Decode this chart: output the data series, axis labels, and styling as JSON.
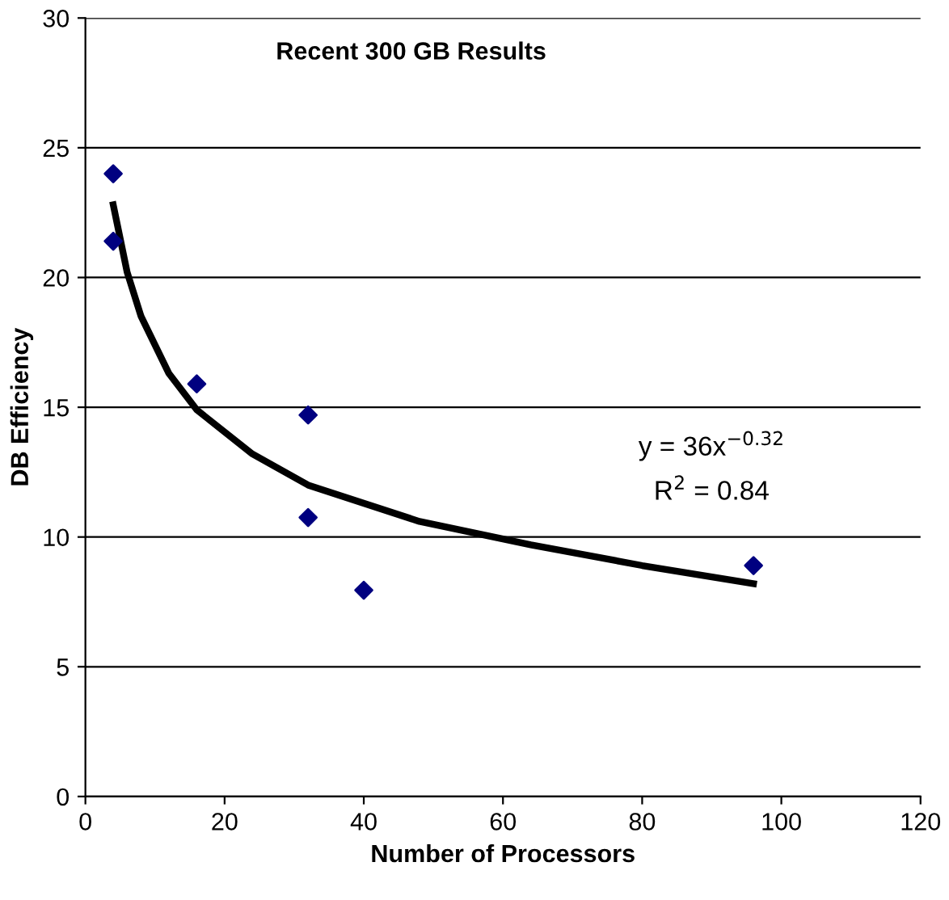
{
  "chart_data": {
    "type": "scatter",
    "title": "Recent 300 GB Results",
    "xlabel": "Number of Processors",
    "ylabel": "DB Efficiency",
    "series": [
      {
        "color": "#000080",
        "marker": "diamond",
        "x": [
          4,
          4,
          16,
          32,
          32,
          40,
          96
        ],
        "values": [
          24.0,
          21.4,
          15.9,
          14.7,
          10.75,
          7.95,
          8.9
        ]
      },
      {
        "type": "line",
        "color": "#000000",
        "marker": "none",
        "x": [
          4,
          6,
          8,
          12,
          16,
          24,
          32,
          48,
          64,
          80,
          96
        ],
        "values": [
          22.8,
          20.2,
          18.5,
          16.3,
          14.9,
          13.2,
          12.0,
          10.6,
          9.7,
          8.9,
          8.2
        ]
      }
    ],
    "annotations": [
      "y = 36x$^{−0.32}$",
      "R$^{2}$ = 0.84"
    ],
    "xlim": [
      0,
      120
    ],
    "xticks": [
      0,
      20,
      40,
      60,
      80,
      100,
      120
    ],
    "ylim": [
      0,
      30
    ],
    "yticks": [
      0,
      5,
      10,
      15,
      20,
      25,
      30
    ],
    "grid": "y",
    "legend": false
  }
}
